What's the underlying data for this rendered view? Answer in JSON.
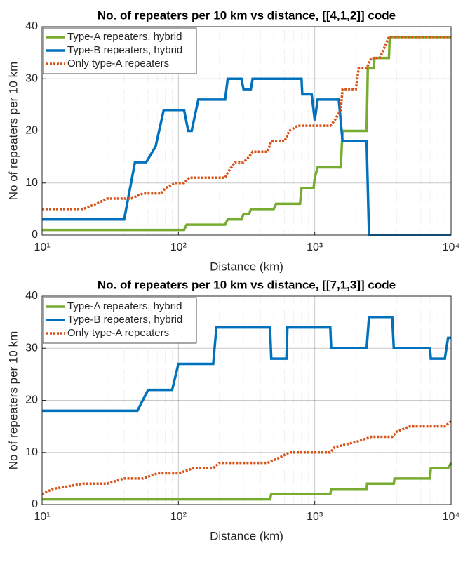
{
  "chart_data": [
    {
      "type": "line",
      "title": "No. of repeaters per 10 km vs distance, [[4,1,2]] code",
      "xlabel": "Distance (km)",
      "ylabel": "No of repeaters per 10 km",
      "xscale": "log",
      "xlim": [
        10,
        10000
      ],
      "ylim": [
        0,
        40
      ],
      "xticks": [
        {
          "value": 10,
          "label": "10¹"
        },
        {
          "value": 100,
          "label": "10²"
        },
        {
          "value": 1000,
          "label": "10³"
        },
        {
          "value": 10000,
          "label": "10⁴"
        }
      ],
      "yticks": [
        0,
        10,
        20,
        30,
        40
      ],
      "grid": true,
      "legend": "upper left",
      "series": [
        {
          "name": "Type-A repeaters, hybrid",
          "color": "#77ac30",
          "linestyle": "solid",
          "x": [
            10,
            110,
            115,
            220,
            230,
            290,
            300,
            330,
            340,
            500,
            520,
            780,
            800,
            980,
            1000,
            1050,
            1550,
            1600,
            2400,
            2450,
            2700,
            2750,
            3500,
            3550,
            10000
          ],
          "values": [
            1,
            1,
            2,
            2,
            3,
            3,
            4,
            4,
            5,
            5,
            6,
            6,
            9,
            9,
            11,
            13,
            13,
            20,
            20,
            32,
            32,
            34,
            34,
            38,
            38
          ]
        },
        {
          "name": "Type-B repeaters, hybrid",
          "color": "#0072bd",
          "linestyle": "solid",
          "x": [
            10,
            40,
            48,
            58,
            68,
            78,
            110,
            118,
            125,
            140,
            220,
            230,
            290,
            300,
            340,
            350,
            800,
            810,
            950,
            1000,
            1050,
            1500,
            1600,
            2400,
            2500,
            10000
          ],
          "values": [
            3,
            3,
            14,
            14,
            17,
            24,
            24,
            20,
            20,
            26,
            26,
            30,
            30,
            28,
            28,
            30,
            30,
            27,
            27,
            22,
            26,
            26,
            18,
            18,
            0,
            0
          ]
        },
        {
          "name": "Only type-A repeaters",
          "color": "#d95319",
          "linestyle": "dotted",
          "x": [
            10,
            20,
            25,
            30,
            45,
            55,
            75,
            80,
            95,
            110,
            120,
            220,
            230,
            260,
            300,
            330,
            350,
            450,
            480,
            600,
            650,
            750,
            1300,
            1400,
            1550,
            1600,
            2000,
            2100,
            2400,
            2600,
            3000,
            3500,
            10000
          ],
          "values": [
            5,
            5,
            6,
            7,
            7,
            8,
            8,
            9,
            10,
            10,
            11,
            11,
            12,
            14,
            14,
            15,
            16,
            16,
            18,
            18,
            20,
            21,
            21,
            22,
            24,
            28,
            28,
            32,
            32,
            34,
            34,
            38,
            38
          ]
        }
      ]
    },
    {
      "type": "line",
      "title": "No. of repeaters per 10 km vs distance, [[7,1,3]] code",
      "xlabel": "Distance (km)",
      "ylabel": "No of repeaters per 10 km",
      "xscale": "log",
      "xlim": [
        10,
        10000
      ],
      "ylim": [
        0,
        40
      ],
      "xticks": [
        {
          "value": 10,
          "label": "10¹"
        },
        {
          "value": 100,
          "label": "10²"
        },
        {
          "value": 1000,
          "label": "10³"
        },
        {
          "value": 10000,
          "label": "10⁴"
        }
      ],
      "yticks": [
        0,
        10,
        20,
        30,
        40
      ],
      "grid": true,
      "legend": "upper left",
      "series": [
        {
          "name": "Type-A repeaters, hybrid",
          "color": "#77ac30",
          "linestyle": "solid",
          "x": [
            10,
            470,
            480,
            1300,
            1320,
            2400,
            2420,
            3800,
            3850,
            7000,
            7100,
            9500,
            10000
          ],
          "values": [
            1,
            1,
            2,
            2,
            3,
            3,
            4,
            4,
            5,
            5,
            7,
            7,
            8
          ]
        },
        {
          "name": "Type-B repeaters, hybrid",
          "color": "#0072bd",
          "linestyle": "solid",
          "x": [
            10,
            50,
            60,
            90,
            100,
            180,
            190,
            470,
            480,
            620,
            630,
            1300,
            1320,
            2400,
            2500,
            3700,
            3800,
            7000,
            7100,
            9000,
            9500,
            10000
          ],
          "values": [
            18,
            18,
            22,
            22,
            27,
            27,
            34,
            34,
            28,
            28,
            34,
            34,
            30,
            30,
            36,
            36,
            30,
            30,
            28,
            28,
            32,
            32
          ]
        },
        {
          "name": "Only type-A repeaters",
          "color": "#d95319",
          "linestyle": "dotted",
          "x": [
            10,
            12,
            20,
            30,
            40,
            55,
            70,
            100,
            130,
            180,
            200,
            450,
            550,
            650,
            1300,
            1400,
            2000,
            2600,
            3700,
            4000,
            5000,
            9000,
            10000
          ],
          "values": [
            2,
            3,
            4,
            4,
            5,
            5,
            6,
            6,
            7,
            7,
            8,
            8,
            9,
            10,
            10,
            11,
            12,
            13,
            13,
            14,
            15,
            15,
            16
          ]
        }
      ]
    }
  ]
}
